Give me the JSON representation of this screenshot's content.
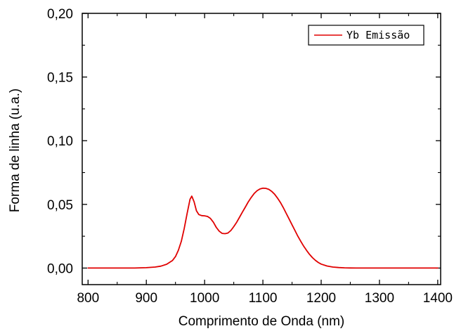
{
  "chart_data": {
    "type": "line",
    "title": "",
    "xlabel": "Comprimento de Onda (nm)",
    "ylabel": "Forma de linha (u.a.)",
    "xlim": [
      790,
      1405
    ],
    "ylim": [
      -0.013,
      0.2
    ],
    "x_ticks": [
      800,
      900,
      1000,
      1100,
      1200,
      1300,
      1400
    ],
    "x_tick_labels": [
      "800",
      "900",
      "1000",
      "1100",
      "1200",
      "1300",
      "1400"
    ],
    "y_ticks": [
      0.0,
      0.05,
      0.1,
      0.15,
      0.2
    ],
    "y_tick_labels": [
      "0,00",
      "0,05",
      "0,10",
      "0,15",
      "0,20"
    ],
    "grid": false,
    "legend_position": "top-right",
    "series": [
      {
        "name": "Yb Emissão",
        "color": "#e00000",
        "x": [
          800,
          850,
          880,
          900,
          915,
          925,
          935,
          945,
          950,
          955,
          960,
          965,
          970,
          975,
          978,
          982,
          986,
          990,
          995,
          1000,
          1005,
          1010,
          1015,
          1020,
          1025,
          1030,
          1035,
          1040,
          1045,
          1050,
          1055,
          1060,
          1065,
          1070,
          1075,
          1080,
          1085,
          1090,
          1095,
          1100,
          1105,
          1110,
          1115,
          1120,
          1125,
          1130,
          1135,
          1140,
          1145,
          1150,
          1155,
          1160,
          1165,
          1170,
          1175,
          1180,
          1185,
          1190,
          1195,
          1200,
          1210,
          1220,
          1230,
          1240,
          1250,
          1260,
          1280,
          1300,
          1350,
          1400
        ],
        "values": [
          0.0,
          0.0,
          0.0,
          0.0003,
          0.0008,
          0.0015,
          0.003,
          0.006,
          0.009,
          0.014,
          0.021,
          0.031,
          0.043,
          0.054,
          0.0565,
          0.052,
          0.045,
          0.042,
          0.0412,
          0.041,
          0.0405,
          0.039,
          0.036,
          0.032,
          0.029,
          0.0272,
          0.027,
          0.0275,
          0.0295,
          0.0325,
          0.036,
          0.04,
          0.044,
          0.048,
          0.052,
          0.0555,
          0.0585,
          0.0607,
          0.0621,
          0.0627,
          0.0626,
          0.0618,
          0.0603,
          0.058,
          0.055,
          0.0515,
          0.0475,
          0.043,
          0.0385,
          0.034,
          0.0295,
          0.025,
          0.021,
          0.0172,
          0.0138,
          0.0108,
          0.0082,
          0.0061,
          0.0044,
          0.0031,
          0.0016,
          0.0008,
          0.0004,
          0.0002,
          0.0001,
          0.0,
          0.0,
          0.0,
          0.0,
          0.0
        ]
      }
    ]
  }
}
